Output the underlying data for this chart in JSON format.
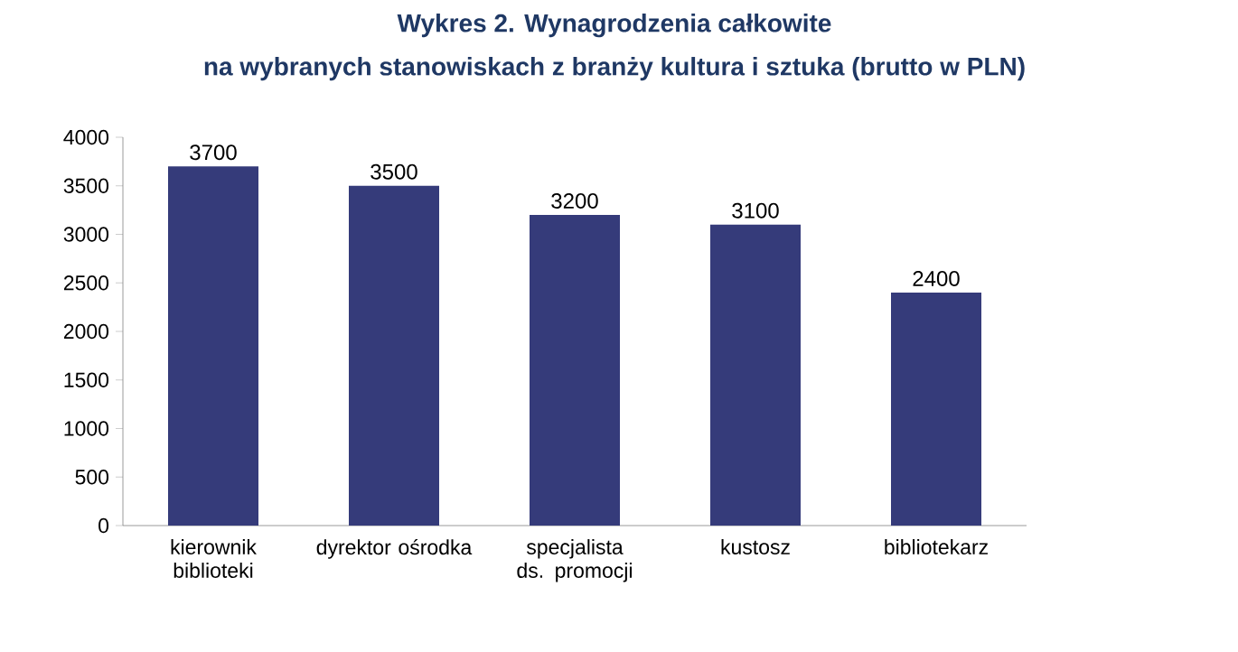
{
  "chart_data": {
    "type": "bar",
    "title": "Wykres 2. Wynagrodzenia całkowite",
    "subtitle": "na wybranych stanowiskach z branży kultura i sztuka (brutto w PLN)",
    "categories": [
      "kierownik biblioteki",
      "dyrektor ośrodka",
      "specjalista ds. promocji",
      "kustosz",
      "bibliotekarz"
    ],
    "values": [
      3700,
      3500,
      3200,
      3100,
      2400
    ],
    "color": "#353b7a",
    "ylim": [
      0,
      4000
    ],
    "yticks": [
      0,
      500,
      1000,
      1500,
      2000,
      2500,
      3000,
      3500,
      4000
    ],
    "data_labels": true
  }
}
